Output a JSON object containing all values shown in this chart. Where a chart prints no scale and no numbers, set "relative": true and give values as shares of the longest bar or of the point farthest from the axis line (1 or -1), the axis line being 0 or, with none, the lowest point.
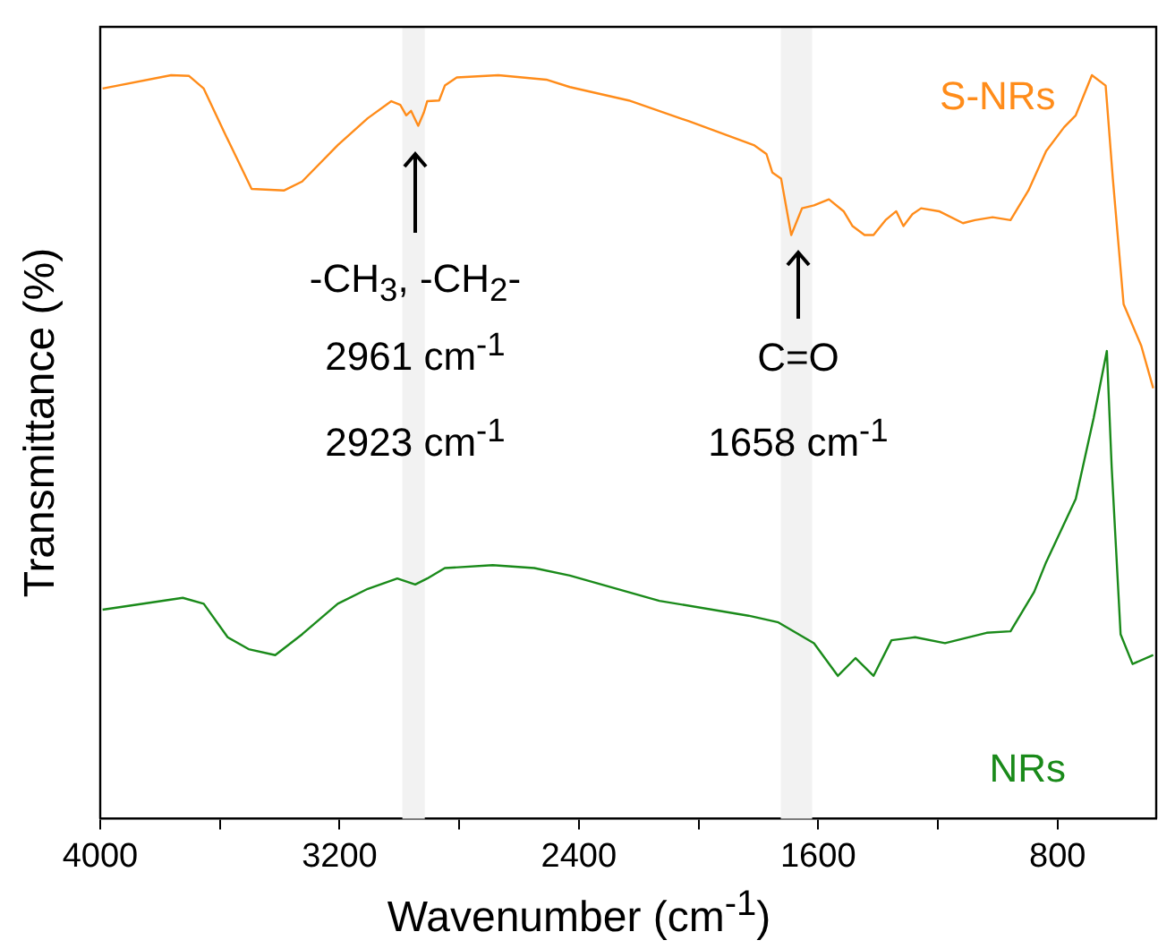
{
  "chart_data": {
    "type": "line",
    "relative": true,
    "xlabel": "Wavenumber (cm$^{-1}$)",
    "ylabel": "Transmittance (%)",
    "xlim": [
      4000,
      470
    ],
    "xticks": [
      4000,
      {
        "value": 3600,
        "label": null
      },
      3200,
      {
        "value": 2800,
        "label": null
      },
      2400,
      {
        "value": 2000,
        "label": null
      },
      1600,
      {
        "value": 1200,
        "label": null
      },
      800
    ],
    "grid": false,
    "legend": false,
    "marker": "none",
    "line_style": "solid",
    "bands": [
      {
        "axis": "x",
        "from": 2990,
        "to": 2915,
        "color": "#f2f2f2"
      },
      {
        "axis": "x",
        "from": 1725,
        "to": 1620,
        "color": "#f2f2f2"
      }
    ],
    "annotations": [
      "-CH$_{3}$, -CH$_{2}$-",
      "2961 cm$^{-1}$",
      "2923 cm$^{-1}$",
      "C=O",
      "1658 cm$^{-1}$"
    ],
    "series": [
      {
        "name": "S-NRs",
        "color": "#ff8c1a",
        "x": [
          3992,
          3763,
          3703,
          3654,
          3584,
          3494,
          3385,
          3325,
          3206,
          3106,
          3027,
          2997,
          2977,
          2961,
          2937,
          2918,
          2907,
          2867,
          2848,
          2808,
          2669,
          2509,
          2430,
          2233,
          2032,
          1815,
          1773,
          1753,
          1724,
          1690,
          1654,
          1614,
          1564,
          1515,
          1485,
          1445,
          1415,
          1375,
          1339,
          1315,
          1285,
          1256,
          1196,
          1116,
          1076,
          1017,
          957,
          897,
          838,
          778,
          739,
          685,
          639,
          615,
          579,
          520,
          480
        ],
        "values": [
          0.982,
          1.0,
          0.999,
          0.982,
          0.922,
          0.847,
          0.845,
          0.857,
          0.906,
          0.942,
          0.965,
          0.96,
          0.946,
          0.952,
          0.932,
          0.95,
          0.965,
          0.966,
          0.986,
          0.997,
          1.0,
          0.994,
          0.984,
          0.966,
          0.938,
          0.906,
          0.894,
          0.869,
          0.861,
          0.785,
          0.821,
          0.825,
          0.833,
          0.817,
          0.797,
          0.785,
          0.785,
          0.805,
          0.817,
          0.797,
          0.813,
          0.821,
          0.817,
          0.801,
          0.805,
          0.809,
          0.805,
          0.845,
          0.898,
          0.93,
          0.946,
          1.0,
          0.986,
          0.861,
          0.692,
          0.636,
          0.579
        ]
      },
      {
        "name": "NRs",
        "color": "#1a8a1a",
        "x": [
          3992,
          3724,
          3654,
          3574,
          3504,
          3415,
          3325,
          3206,
          3106,
          3007,
          2947,
          2907,
          2848,
          2688,
          2549,
          2430,
          2131,
          1833,
          1733,
          1614,
          1534,
          1475,
          1415,
          1355,
          1276,
          1176,
          1037,
          957,
          878,
          838,
          739,
          679,
          635,
          619,
          589,
          549,
          480
        ],
        "values": [
          0.281,
          0.297,
          0.289,
          0.244,
          0.228,
          0.22,
          0.248,
          0.289,
          0.309,
          0.323,
          0.315,
          0.323,
          0.337,
          0.341,
          0.337,
          0.327,
          0.293,
          0.273,
          0.264,
          0.236,
          0.192,
          0.216,
          0.192,
          0.24,
          0.244,
          0.236,
          0.25,
          0.252,
          0.305,
          0.345,
          0.43,
          0.539,
          0.629,
          0.474,
          0.248,
          0.208,
          0.22
        ]
      }
    ]
  }
}
